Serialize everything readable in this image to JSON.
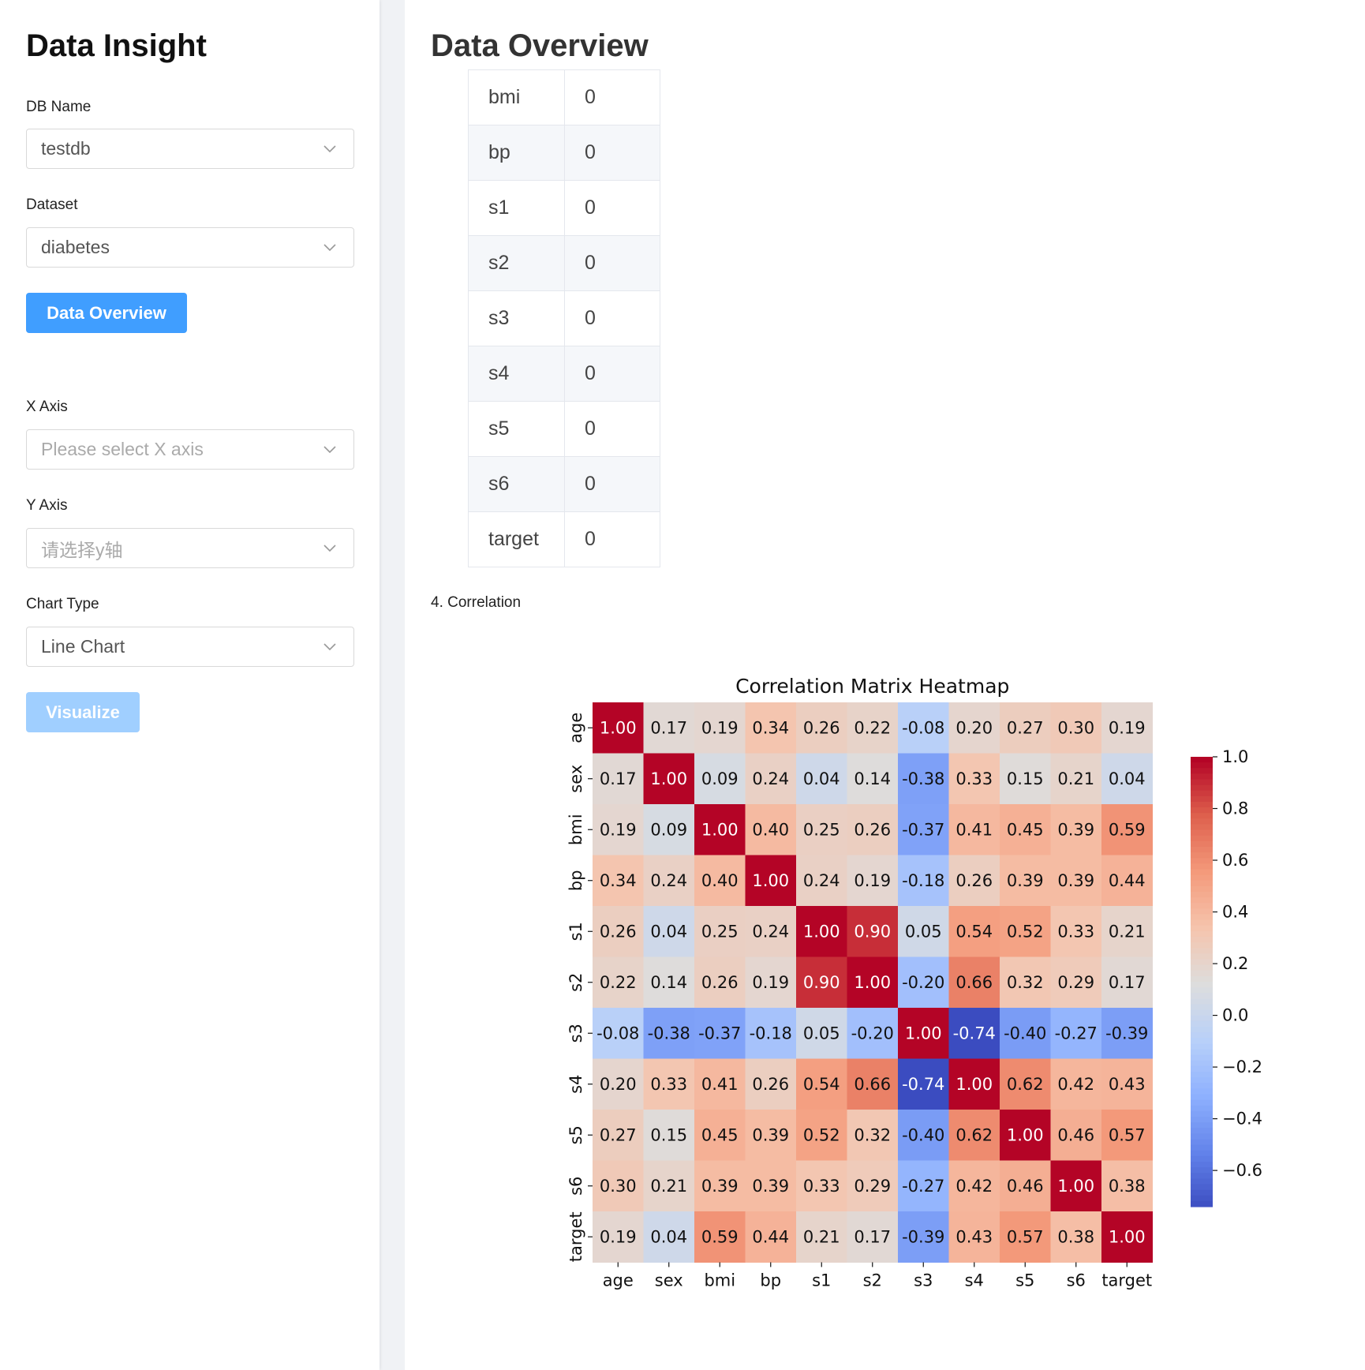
{
  "sidebar": {
    "title": "Data Insight",
    "db_name_label": "DB Name",
    "db_name_value": "testdb",
    "dataset_label": "Dataset",
    "dataset_value": "diabetes",
    "overview_button": "Data Overview",
    "x_axis_label": "X Axis",
    "x_axis_placeholder": "Please select X axis",
    "y_axis_label": "Y Axis",
    "y_axis_placeholder": "请选择y轴",
    "chart_type_label": "Chart Type",
    "chart_type_value": "Line Chart",
    "visualize_button": "Visualize"
  },
  "main": {
    "title": "Data Overview",
    "null_table": [
      {
        "column": "bmi",
        "value": "0"
      },
      {
        "column": "bp",
        "value": "0"
      },
      {
        "column": "s1",
        "value": "0"
      },
      {
        "column": "s2",
        "value": "0"
      },
      {
        "column": "s3",
        "value": "0"
      },
      {
        "column": "s4",
        "value": "0"
      },
      {
        "column": "s5",
        "value": "0"
      },
      {
        "column": "s6",
        "value": "0"
      },
      {
        "column": "target",
        "value": "0"
      }
    ],
    "correlation_label": "4. Correlation"
  },
  "chart_data": {
    "type": "heatmap",
    "title": "Correlation Matrix Heatmap",
    "labels": [
      "age",
      "sex",
      "bmi",
      "bp",
      "s1",
      "s2",
      "s3",
      "s4",
      "s5",
      "s6",
      "target"
    ],
    "values": [
      [
        1.0,
        0.17,
        0.19,
        0.34,
        0.26,
        0.22,
        -0.08,
        0.2,
        0.27,
        0.3,
        0.19
      ],
      [
        0.17,
        1.0,
        0.09,
        0.24,
        0.04,
        0.14,
        -0.38,
        0.33,
        0.15,
        0.21,
        0.04
      ],
      [
        0.19,
        0.09,
        1.0,
        0.4,
        0.25,
        0.26,
        -0.37,
        0.41,
        0.45,
        0.39,
        0.59
      ],
      [
        0.34,
        0.24,
        0.4,
        1.0,
        0.24,
        0.19,
        -0.18,
        0.26,
        0.39,
        0.39,
        0.44
      ],
      [
        0.26,
        0.04,
        0.25,
        0.24,
        1.0,
        0.9,
        0.05,
        0.54,
        0.52,
        0.33,
        0.21
      ],
      [
        0.22,
        0.14,
        0.26,
        0.19,
        0.9,
        1.0,
        -0.2,
        0.66,
        0.32,
        0.29,
        0.17
      ],
      [
        -0.08,
        -0.38,
        -0.37,
        -0.18,
        0.05,
        -0.2,
        1.0,
        -0.74,
        -0.4,
        -0.27,
        -0.39
      ],
      [
        0.2,
        0.33,
        0.41,
        0.26,
        0.54,
        0.66,
        -0.74,
        1.0,
        0.62,
        0.42,
        0.43
      ],
      [
        0.27,
        0.15,
        0.45,
        0.39,
        0.52,
        0.32,
        -0.4,
        0.62,
        1.0,
        0.46,
        0.57
      ],
      [
        0.3,
        0.21,
        0.39,
        0.39,
        0.33,
        0.29,
        -0.27,
        0.42,
        0.46,
        1.0,
        0.38
      ],
      [
        0.19,
        0.04,
        0.59,
        0.44,
        0.21,
        0.17,
        -0.39,
        0.43,
        0.57,
        0.38,
        1.0
      ]
    ],
    "colormap": "coolwarm",
    "vmin": -0.74,
    "vmax": 1.0,
    "colorbar_ticks": [
      "1.0",
      "0.8",
      "0.6",
      "0.4",
      "0.2",
      "0.0",
      "−0.2",
      "−0.4",
      "−0.6"
    ],
    "annot_format": "0.00"
  }
}
